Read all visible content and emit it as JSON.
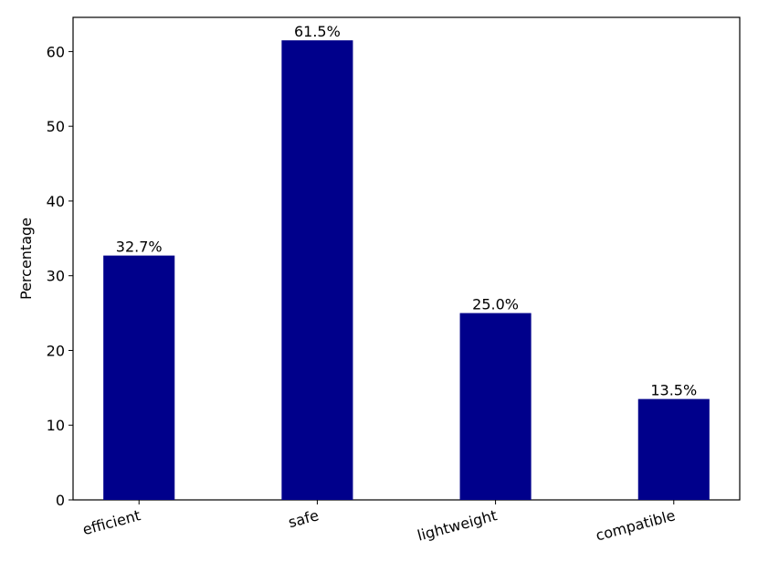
{
  "chart_data": {
    "type": "bar",
    "y_label": "Percentage",
    "categories": [
      "efficient",
      "safe",
      "lightweight",
      "compatible"
    ],
    "values": [
      32.7,
      61.5,
      25.0,
      13.5
    ],
    "value_labels": [
      "32.7%",
      "61.5%",
      "25.0%",
      "13.5%"
    ],
    "color": "#00008b",
    "ylim": [
      0,
      64.575
    ],
    "yticks": [
      0,
      10,
      20,
      30,
      40,
      50,
      60
    ],
    "grid": false
  }
}
